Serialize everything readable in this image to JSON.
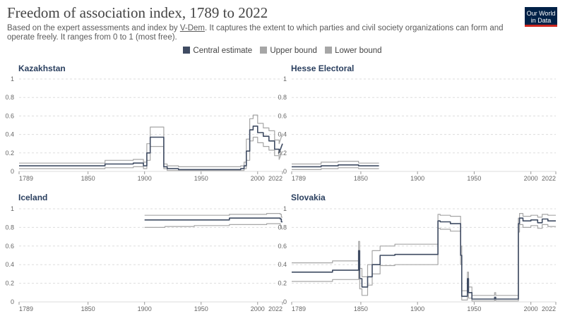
{
  "header": {
    "title": "Freedom of association index, 1789 to 2022",
    "subtitle_before": "Based on the expert assessments and index by ",
    "subtitle_link": "V-Dem",
    "subtitle_after": ". It captures the extent to which parties and civil society organizations can form and operate freely. It ranges from 0 to 1 (most free).",
    "logo_line1": "Our World",
    "logo_line2": "in Data"
  },
  "legend": [
    {
      "label": "Central estimate",
      "color": "#3f4b62"
    },
    {
      "label": "Upper bound",
      "color": "#a6a6a6"
    },
    {
      "label": "Lower bound",
      "color": "#a6a6a6"
    }
  ],
  "colors": {
    "central": "#3f4b62",
    "bounds": "#a6a6a6",
    "grid": "#dddddd"
  },
  "chart_data": [
    {
      "type": "line",
      "title": "Kazakhstan",
      "xlim": [
        1789,
        2022
      ],
      "ylim": [
        0,
        1
      ],
      "xticks": [
        "1789",
        "1850",
        "1900",
        "1950",
        "2000",
        "2022"
      ],
      "yticks": [
        "0",
        "0.2",
        "0.4",
        "0.6",
        "0.8",
        "1"
      ],
      "grid": true,
      "series": [
        {
          "name": "Central estimate",
          "x": [
            1789,
            1865,
            1865,
            1890,
            1890,
            1899,
            1899,
            1902,
            1902,
            1905,
            1905,
            1917,
            1917,
            1920,
            1920,
            1930,
            1930,
            1985,
            1985,
            1988,
            1988,
            1990,
            1990,
            1993,
            1993,
            1996,
            1996,
            2000,
            2000,
            2005,
            2005,
            2010,
            2010,
            2015,
            2015,
            2019,
            2019,
            2022
          ],
          "y": [
            0.06,
            0.06,
            0.08,
            0.08,
            0.09,
            0.09,
            0.06,
            0.06,
            0.2,
            0.2,
            0.37,
            0.37,
            0.05,
            0.05,
            0.03,
            0.03,
            0.02,
            0.02,
            0.03,
            0.03,
            0.06,
            0.06,
            0.22,
            0.22,
            0.45,
            0.45,
            0.49,
            0.49,
            0.42,
            0.42,
            0.38,
            0.38,
            0.33,
            0.33,
            0.24,
            0.24,
            0.2,
            0.3
          ]
        },
        {
          "name": "Upper bound",
          "x": [
            1789,
            1865,
            1865,
            1890,
            1890,
            1899,
            1899,
            1902,
            1902,
            1905,
            1905,
            1917,
            1917,
            1920,
            1920,
            1930,
            1930,
            1985,
            1985,
            1988,
            1988,
            1990,
            1990,
            1993,
            1993,
            1996,
            1996,
            2000,
            2000,
            2005,
            2005,
            2010,
            2010,
            2015,
            2015,
            2019,
            2019,
            2022
          ],
          "y": [
            0.09,
            0.09,
            0.12,
            0.12,
            0.13,
            0.13,
            0.1,
            0.1,
            0.3,
            0.3,
            0.48,
            0.48,
            0.08,
            0.08,
            0.06,
            0.06,
            0.05,
            0.05,
            0.06,
            0.06,
            0.1,
            0.1,
            0.35,
            0.35,
            0.57,
            0.57,
            0.61,
            0.61,
            0.52,
            0.52,
            0.47,
            0.47,
            0.44,
            0.44,
            0.34,
            0.34,
            0.3,
            0.41
          ]
        },
        {
          "name": "Lower bound",
          "x": [
            1789,
            1865,
            1865,
            1890,
            1890,
            1899,
            1899,
            1902,
            1902,
            1905,
            1905,
            1917,
            1917,
            1920,
            1920,
            1930,
            1930,
            1985,
            1985,
            1988,
            1988,
            1990,
            1990,
            1993,
            1993,
            1996,
            1996,
            2000,
            2000,
            2005,
            2005,
            2010,
            2010,
            2015,
            2015,
            2019,
            2019,
            2022
          ],
          "y": [
            0.03,
            0.03,
            0.04,
            0.04,
            0.05,
            0.05,
            0.03,
            0.03,
            0.12,
            0.12,
            0.27,
            0.27,
            0.03,
            0.03,
            0.01,
            0.01,
            0.01,
            0.01,
            0.01,
            0.01,
            0.03,
            0.03,
            0.12,
            0.12,
            0.33,
            0.33,
            0.37,
            0.37,
            0.31,
            0.31,
            0.27,
            0.27,
            0.23,
            0.23,
            0.17,
            0.17,
            0.13,
            0.22
          ]
        }
      ]
    },
    {
      "type": "line",
      "title": "Hesse Electoral",
      "xlim": [
        1789,
        2022
      ],
      "ylim": [
        0,
        1
      ],
      "xticks": [
        "1789",
        "1850",
        "1900",
        "1950",
        "2000",
        "2022"
      ],
      "yticks": [
        "0",
        "0.2",
        "0.4",
        "0.6",
        "0.8",
        "1"
      ],
      "grid": true,
      "series": [
        {
          "name": "Central estimate",
          "x": [
            1789,
            1815,
            1815,
            1830,
            1830,
            1848,
            1848,
            1866
          ],
          "y": [
            0.05,
            0.05,
            0.06,
            0.06,
            0.07,
            0.07,
            0.06,
            0.06
          ]
        },
        {
          "name": "Upper bound",
          "x": [
            1789,
            1815,
            1815,
            1830,
            1830,
            1848,
            1848,
            1866
          ],
          "y": [
            0.08,
            0.08,
            0.1,
            0.1,
            0.11,
            0.11,
            0.09,
            0.09
          ]
        },
        {
          "name": "Lower bound",
          "x": [
            1789,
            1815,
            1815,
            1830,
            1830,
            1848,
            1848,
            1866
          ],
          "y": [
            0.02,
            0.02,
            0.03,
            0.03,
            0.04,
            0.04,
            0.03,
            0.03
          ]
        }
      ]
    },
    {
      "type": "line",
      "title": "Iceland",
      "xlim": [
        1789,
        2022
      ],
      "ylim": [
        0,
        1
      ],
      "xticks": [
        "1789",
        "1850",
        "1900",
        "1950",
        "2000",
        "2022"
      ],
      "yticks": [
        "0",
        "0.2",
        "0.4",
        "0.6",
        "0.8",
        "1"
      ],
      "grid": true,
      "series": [
        {
          "name": "Central estimate",
          "x": [
            1900,
            1918,
            1918,
            1944,
            1944,
            1975,
            1975,
            2008,
            2008,
            2020,
            2020,
            2021,
            2021,
            2022
          ],
          "y": [
            0.88,
            0.88,
            0.88,
            0.88,
            0.88,
            0.88,
            0.9,
            0.9,
            0.9,
            0.9,
            0.89,
            0.89,
            0.86,
            0.86
          ]
        },
        {
          "name": "Upper bound",
          "x": [
            1900,
            1918,
            1918,
            1944,
            1944,
            1975,
            1975,
            2008,
            2008,
            2020,
            2020,
            2021,
            2021,
            2022
          ],
          "y": [
            0.93,
            0.93,
            0.93,
            0.93,
            0.93,
            0.93,
            0.94,
            0.94,
            0.95,
            0.95,
            0.94,
            0.94,
            0.91,
            0.91
          ]
        },
        {
          "name": "Lower bound",
          "x": [
            1900,
            1918,
            1918,
            1944,
            1944,
            1975,
            1975,
            2008,
            2008,
            2020,
            2020,
            2021,
            2021,
            2022
          ],
          "y": [
            0.8,
            0.8,
            0.81,
            0.81,
            0.82,
            0.82,
            0.83,
            0.83,
            0.84,
            0.84,
            0.82,
            0.82,
            0.79,
            0.79
          ]
        }
      ]
    },
    {
      "type": "line",
      "title": "Slovakia",
      "xlim": [
        1789,
        2022
      ],
      "ylim": [
        0,
        1
      ],
      "xticks": [
        "1789",
        "1850",
        "1900",
        "1950",
        "2000",
        "2022"
      ],
      "yticks": [
        "0",
        "0.2",
        "0.4",
        "0.6",
        "0.8",
        "1"
      ],
      "grid": true,
      "series": [
        {
          "name": "Central estimate",
          "x": [
            1789,
            1825,
            1825,
            1848,
            1848,
            1849,
            1849,
            1851,
            1851,
            1856,
            1856,
            1860,
            1860,
            1867,
            1867,
            1880,
            1880,
            1918,
            1918,
            1920,
            1920,
            1929,
            1929,
            1938,
            1938,
            1939,
            1939,
            1944,
            1944,
            1945,
            1945,
            1948,
            1948,
            1968,
            1968,
            1969,
            1969,
            1989,
            1989,
            1990,
            1990,
            1993,
            1993,
            2000,
            2000,
            2006,
            2006,
            2010,
            2010,
            2015,
            2015,
            2022
          ],
          "y": [
            0.32,
            0.32,
            0.34,
            0.34,
            0.55,
            0.55,
            0.25,
            0.25,
            0.16,
            0.16,
            0.27,
            0.27,
            0.4,
            0.4,
            0.5,
            0.5,
            0.51,
            0.51,
            0.87,
            0.87,
            0.86,
            0.86,
            0.84,
            0.84,
            0.5,
            0.5,
            0.06,
            0.06,
            0.25,
            0.25,
            0.1,
            0.1,
            0.03,
            0.03,
            0.05,
            0.05,
            0.03,
            0.03,
            0.84,
            0.84,
            0.9,
            0.9,
            0.87,
            0.87,
            0.88,
            0.88,
            0.85,
            0.85,
            0.89,
            0.89,
            0.87,
            0.87
          ]
        },
        {
          "name": "Upper bound",
          "x": [
            1789,
            1825,
            1825,
            1848,
            1848,
            1849,
            1849,
            1851,
            1851,
            1856,
            1856,
            1860,
            1860,
            1867,
            1867,
            1880,
            1880,
            1918,
            1918,
            1920,
            1920,
            1929,
            1929,
            1938,
            1938,
            1939,
            1939,
            1944,
            1944,
            1945,
            1945,
            1948,
            1948,
            1968,
            1968,
            1969,
            1969,
            1989,
            1989,
            1990,
            1990,
            1993,
            1993,
            2000,
            2000,
            2006,
            2006,
            2010,
            2010,
            2015,
            2015,
            2022
          ],
          "y": [
            0.42,
            0.42,
            0.44,
            0.44,
            0.65,
            0.65,
            0.36,
            0.36,
            0.27,
            0.27,
            0.4,
            0.4,
            0.55,
            0.55,
            0.6,
            0.6,
            0.62,
            0.62,
            0.94,
            0.94,
            0.93,
            0.93,
            0.92,
            0.92,
            0.6,
            0.6,
            0.12,
            0.12,
            0.32,
            0.32,
            0.16,
            0.16,
            0.07,
            0.07,
            0.1,
            0.1,
            0.07,
            0.07,
            0.9,
            0.9,
            0.95,
            0.95,
            0.92,
            0.92,
            0.93,
            0.93,
            0.91,
            0.91,
            0.94,
            0.94,
            0.93,
            0.93
          ]
        },
        {
          "name": "Lower bound",
          "x": [
            1789,
            1825,
            1825,
            1848,
            1848,
            1849,
            1849,
            1851,
            1851,
            1856,
            1856,
            1860,
            1860,
            1867,
            1867,
            1880,
            1880,
            1918,
            1918,
            1920,
            1920,
            1929,
            1929,
            1938,
            1938,
            1939,
            1939,
            1944,
            1944,
            1945,
            1945,
            1948,
            1948,
            1968,
            1968,
            1969,
            1969,
            1989,
            1989,
            1990,
            1990,
            1993,
            1993,
            2000,
            2000,
            2006,
            2006,
            2010,
            2010,
            2015,
            2015,
            2022
          ],
          "y": [
            0.22,
            0.22,
            0.24,
            0.24,
            0.44,
            0.44,
            0.14,
            0.14,
            0.07,
            0.07,
            0.18,
            0.18,
            0.3,
            0.3,
            0.39,
            0.39,
            0.4,
            0.4,
            0.79,
            0.79,
            0.78,
            0.78,
            0.76,
            0.76,
            0.4,
            0.4,
            0.02,
            0.02,
            0.15,
            0.15,
            0.04,
            0.04,
            0.01,
            0.01,
            0.02,
            0.02,
            0.01,
            0.01,
            0.75,
            0.75,
            0.83,
            0.83,
            0.8,
            0.8,
            0.82,
            0.82,
            0.79,
            0.79,
            0.83,
            0.83,
            0.81,
            0.81
          ]
        }
      ]
    }
  ]
}
